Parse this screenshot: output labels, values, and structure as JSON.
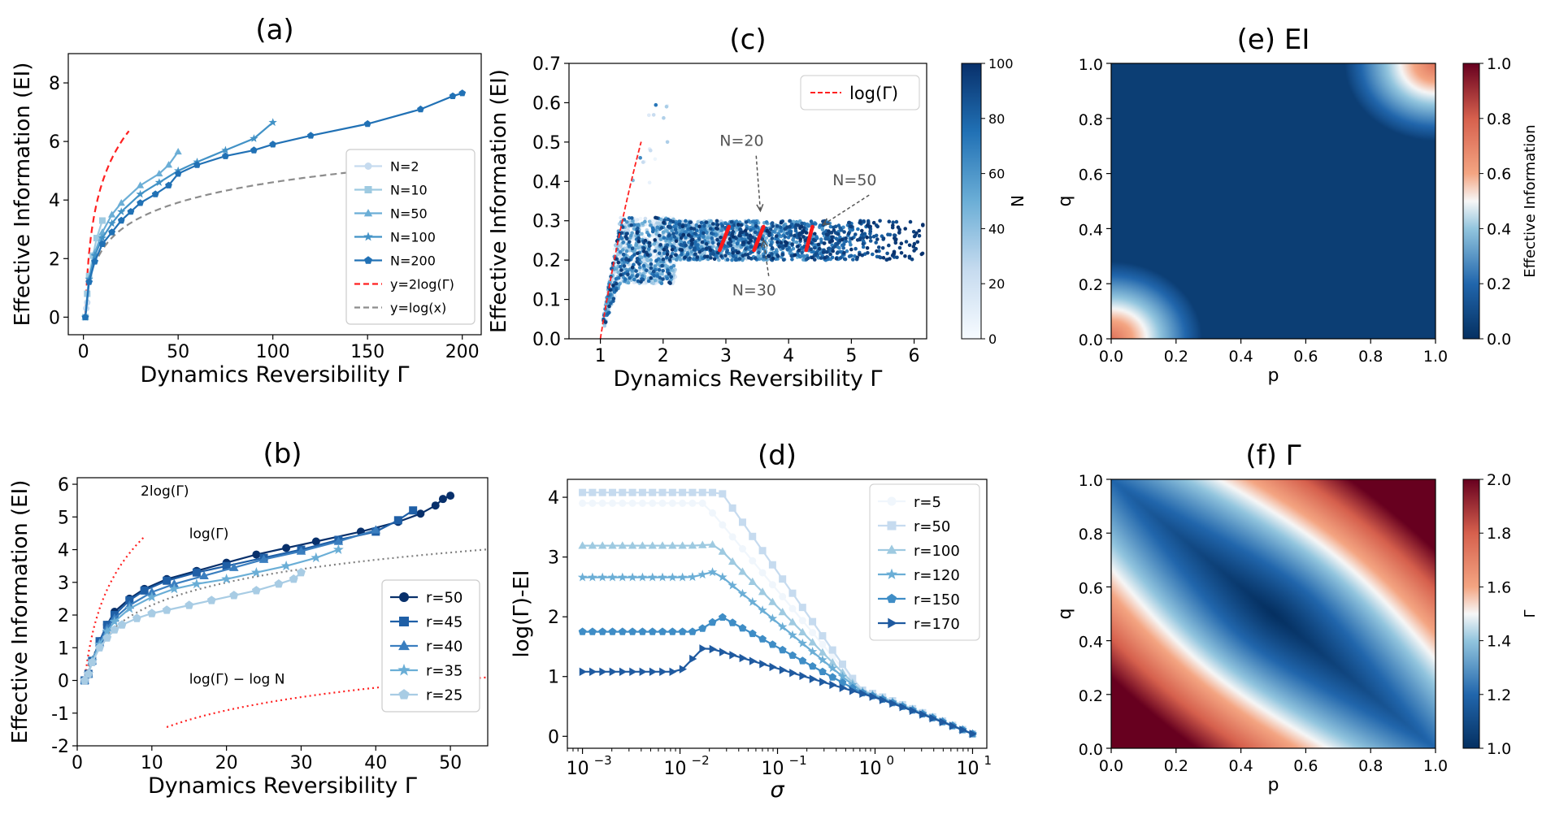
{
  "chart_data": [
    {
      "id": "a",
      "type": "line",
      "title": "(a)",
      "xlabel": "Dynamics Reversibility Γ",
      "ylabel": "Effective Information (EI)",
      "xlim": [
        -8,
        210
      ],
      "ylim": [
        -0.6,
        9
      ],
      "xticks": [
        0,
        50,
        100,
        150,
        200
      ],
      "yticks": [
        0,
        2,
        4,
        6,
        8
      ],
      "legend": "lower-right",
      "series": [
        {
          "name": "N=2",
          "color": "#c6dbef",
          "marker": "circle",
          "x": [
            1,
            1.5,
            2
          ],
          "y": [
            0,
            0.3,
            0.5
          ]
        },
        {
          "name": "N=10",
          "color": "#9ecae1",
          "marker": "square",
          "x": [
            1,
            2,
            3,
            5,
            7,
            10
          ],
          "y": [
            0,
            0.8,
            1.4,
            2.1,
            2.7,
            3.3
          ]
        },
        {
          "name": "N=50",
          "color": "#6baed6",
          "marker": "triangle",
          "x": [
            1,
            3,
            6,
            10,
            15,
            20,
            30,
            40,
            45,
            50
          ],
          "y": [
            0,
            1.3,
            2.2,
            2.9,
            3.5,
            3.9,
            4.5,
            4.9,
            5.2,
            5.65
          ]
        },
        {
          "name": "N=100",
          "color": "#4292c6",
          "marker": "star",
          "x": [
            1,
            3,
            6,
            10,
            15,
            20,
            30,
            40,
            50,
            60,
            75,
            90,
            100
          ],
          "y": [
            0,
            1.3,
            2.1,
            2.7,
            3.2,
            3.6,
            4.2,
            4.6,
            5.0,
            5.3,
            5.7,
            6.1,
            6.65
          ]
        },
        {
          "name": "N=200",
          "color": "#2171b5",
          "marker": "pentagon",
          "x": [
            1,
            3,
            6,
            10,
            15,
            20,
            25,
            30,
            38,
            45,
            50,
            60,
            75,
            90,
            100,
            120,
            150,
            178,
            195,
            200
          ],
          "y": [
            0,
            1.2,
            1.9,
            2.5,
            2.9,
            3.3,
            3.6,
            3.9,
            4.2,
            4.5,
            4.9,
            5.2,
            5.5,
            5.7,
            5.9,
            6.2,
            6.6,
            7.1,
            7.55,
            7.65
          ]
        }
      ],
      "reference_lines": [
        {
          "name": "y=2log(Γ)",
          "color": "#ff2020",
          "style": "dashed",
          "fn": "2log",
          "xmax": 24
        },
        {
          "name": "y=log(x)",
          "color": "#8c8c8c",
          "style": "dashed",
          "fn": "log",
          "xmin": 8,
          "xmax": 200
        }
      ]
    },
    {
      "id": "b",
      "type": "line",
      "title": "(b)",
      "xlabel": "Dynamics Reversibility Γ",
      "ylabel": "Effective Information (EI)",
      "xlim": [
        0,
        55
      ],
      "ylim": [
        -2,
        6.2
      ],
      "xticks": [
        0,
        10,
        20,
        30,
        40,
        50
      ],
      "yticks": [
        -2,
        -1,
        0,
        1,
        2,
        3,
        4,
        5,
        6
      ],
      "legend": "right",
      "annotations": [
        {
          "text": "2log(Γ)",
          "x": 8.5,
          "y": 5.65
        },
        {
          "text": "log(Γ)",
          "x": 15,
          "y": 4.35
        },
        {
          "text": "log(Γ) − log N",
          "x": 15,
          "y": -0.1
        }
      ],
      "series": [
        {
          "name": "r=50",
          "color": "#08306b",
          "marker": "circle",
          "x": [
            1,
            1.5,
            2,
            3,
            4,
            5,
            7,
            9,
            12,
            16,
            20,
            24,
            28,
            32,
            38,
            43,
            46,
            48,
            49,
            50
          ],
          "y": [
            0,
            0.2,
            0.6,
            1.2,
            1.7,
            2.1,
            2.5,
            2.8,
            3.1,
            3.35,
            3.6,
            3.85,
            4.05,
            4.25,
            4.55,
            4.85,
            5.1,
            5.35,
            5.55,
            5.65
          ]
        },
        {
          "name": "r=45",
          "color": "#1f5fa6",
          "marker": "square",
          "x": [
            1,
            1.5,
            2,
            3,
            4,
            5,
            7,
            9,
            12,
            16,
            20,
            25,
            30,
            35,
            40,
            43,
            45
          ],
          "y": [
            0,
            0.2,
            0.6,
            1.2,
            1.7,
            2.0,
            2.45,
            2.75,
            3.05,
            3.3,
            3.5,
            3.75,
            4.0,
            4.3,
            4.55,
            4.9,
            5.2
          ]
        },
        {
          "name": "r=40",
          "color": "#3a7ebf",
          "marker": "triangle",
          "x": [
            1,
            1.5,
            2,
            3,
            4,
            5,
            7,
            10,
            13,
            17,
            21,
            25,
            30,
            35,
            40
          ],
          "y": [
            0,
            0.2,
            0.6,
            1.15,
            1.6,
            1.9,
            2.3,
            2.7,
            2.95,
            3.2,
            3.45,
            3.7,
            3.95,
            4.25,
            4.6
          ]
        },
        {
          "name": "r=35",
          "color": "#6aaed6",
          "marker": "star",
          "x": [
            1,
            1.5,
            2,
            3,
            4,
            5,
            7,
            10,
            13,
            16,
            20,
            24,
            28,
            32,
            35
          ],
          "y": [
            0,
            0.2,
            0.6,
            1.1,
            1.5,
            1.8,
            2.2,
            2.55,
            2.8,
            2.95,
            3.1,
            3.3,
            3.5,
            3.75,
            4.0
          ]
        },
        {
          "name": "r=25",
          "color": "#a8cce4",
          "marker": "pentagon",
          "x": [
            1,
            1.5,
            2,
            3,
            4,
            5,
            6,
            8,
            10,
            12,
            15,
            18,
            21,
            24,
            27,
            29,
            30
          ],
          "y": [
            0,
            0.2,
            0.55,
            1.0,
            1.3,
            1.55,
            1.7,
            1.9,
            2.05,
            2.15,
            2.3,
            2.45,
            2.6,
            2.75,
            2.95,
            3.1,
            3.3
          ]
        }
      ],
      "reference_lines": [
        {
          "name": "2log(Γ)",
          "color": "#ff2020",
          "style": "dotted",
          "fn": "2log",
          "xmax": 9
        },
        {
          "name": "log(Γ)",
          "color": "#7f7f7f",
          "style": "dotted",
          "fn": "log",
          "xmax": 55
        },
        {
          "name": "log(Γ) − log N",
          "color": "#ff2020",
          "style": "dotted",
          "fn": "logminus",
          "xmin": 12,
          "xmax": 55
        }
      ]
    },
    {
      "id": "c",
      "type": "scatter",
      "title": "(c)",
      "xlabel": "Dynamics Reversibility Γ",
      "ylabel": "Effective Information (EI)",
      "xlim": [
        0.5,
        6.2
      ],
      "ylim": [
        0,
        0.7
      ],
      "xticks": [
        1,
        2,
        3,
        4,
        5,
        6
      ],
      "yticks": [
        0.0,
        0.1,
        0.2,
        0.3,
        0.4,
        0.5,
        0.6,
        0.7
      ],
      "legend": "top-right",
      "legend_entries": [
        "log(Γ)"
      ],
      "colorbar": {
        "label": "N",
        "min": 0,
        "max": 100,
        "ticks": [
          0,
          20,
          40,
          60,
          80,
          100
        ]
      },
      "annotations": [
        {
          "text": "N=20",
          "x": 2.9,
          "y": 0.49
        },
        {
          "text": "N=50",
          "x": 4.7,
          "y": 0.39
        },
        {
          "text": "N=30",
          "x": 3.1,
          "y": 0.11
        }
      ],
      "reference_lines": [
        {
          "name": "log(Γ)",
          "color": "#ff2020",
          "style": "dashed",
          "fn": "log",
          "xmin": 1,
          "xmax": 1.65
        }
      ]
    },
    {
      "id": "d",
      "type": "line",
      "title": "(d)",
      "xlabel": "σ",
      "ylabel": "log(Γ)-EI",
      "xscale": "log",
      "xlim": [
        0.0007,
        14
      ],
      "ylim": [
        -0.2,
        4.3
      ],
      "xtick_labels": [
        "10",
        "10",
        "10",
        "10",
        "10"
      ],
      "xtick_exponents": [
        "−3",
        "−2",
        "−1",
        "0",
        "1"
      ],
      "yticks": [
        0,
        1,
        2,
        3,
        4
      ],
      "legend": "top-right",
      "series": [
        {
          "name": "r=5",
          "color": "#f0f6fc",
          "marker": "circle",
          "plateau": 3.9,
          "peak": 0,
          "x0": 0.01
        },
        {
          "name": "r=50",
          "color": "#c6dbef",
          "marker": "square",
          "plateau": 4.08,
          "peak": 0,
          "x0": 0.015
        },
        {
          "name": "r=100",
          "color": "#9ecae1",
          "marker": "triangle",
          "plateau": 3.19,
          "peak": 0.02,
          "x0": 0.013
        },
        {
          "name": "r=120",
          "color": "#6baed6",
          "marker": "star",
          "plateau": 2.66,
          "peak": 0.1,
          "x0": 0.013
        },
        {
          "name": "r=150",
          "color": "#3f8dc6",
          "marker": "pentagon",
          "plateau": 1.75,
          "peak": 0.25,
          "x0": 0.015
        },
        {
          "name": "r=170",
          "color": "#1f5aa0",
          "marker": "tri-right",
          "plateau": 1.08,
          "peak": 0.42,
          "x0": 0.01
        }
      ]
    },
    {
      "id": "e",
      "type": "heatmap",
      "title": "(e) EI",
      "xlabel": "p",
      "ylabel": "q",
      "xlim": [
        0,
        1
      ],
      "ylim": [
        0,
        1
      ],
      "xticks": [
        "0.0",
        "0.2",
        "0.4",
        "0.6",
        "0.8",
        "1.0"
      ],
      "yticks": [
        "0.0",
        "0.2",
        "0.4",
        "0.6",
        "0.8",
        "1.0"
      ],
      "colorbar": {
        "label": "Effective Information",
        "min": 0,
        "max": 1,
        "ticks": [
          "0.0",
          "0.2",
          "0.4",
          "0.6",
          "0.8",
          "1.0"
        ]
      }
    },
    {
      "id": "f",
      "type": "heatmap",
      "title": "(f) Γ",
      "xlabel": "p",
      "ylabel": "q",
      "xlim": [
        0,
        1
      ],
      "ylim": [
        0,
        1
      ],
      "xticks": [
        "0.0",
        "0.2",
        "0.4",
        "0.6",
        "0.8",
        "1.0"
      ],
      "yticks": [
        "0.0",
        "0.2",
        "0.4",
        "0.6",
        "0.8",
        "1.0"
      ],
      "colorbar": {
        "label": "Γ",
        "min": 1,
        "max": 2,
        "ticks": [
          "1.0",
          "1.2",
          "1.4",
          "1.6",
          "1.8",
          "2.0"
        ]
      }
    }
  ]
}
